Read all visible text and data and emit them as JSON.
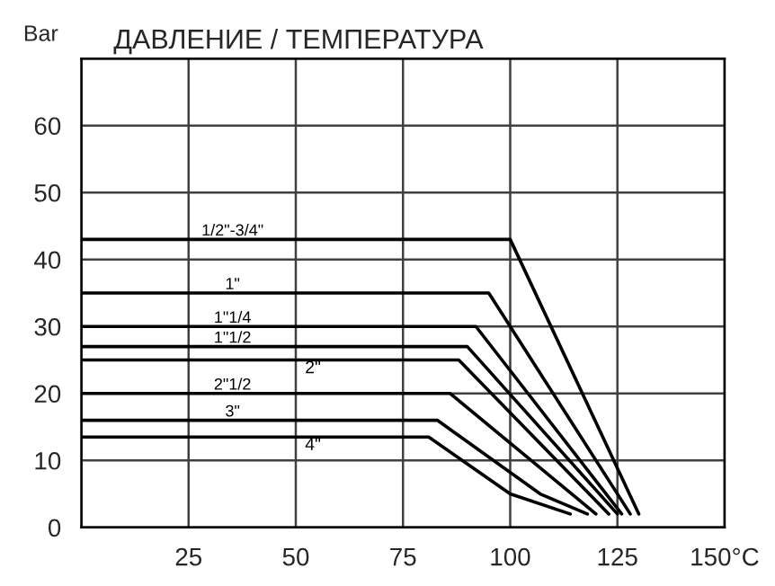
{
  "chart_data": {
    "type": "line",
    "title": "ДАВЛЕНИЕ / ТЕМПЕРАТУРА",
    "ylabel": "Bar",
    "series": [
      {
        "name": "1/2\"-3/4\"",
        "color": "#000000",
        "x": [
          0,
          100,
          130
        ],
        "values": [
          43,
          43,
          2
        ]
      },
      {
        "name": "1\"",
        "color": "#000000",
        "x": [
          0,
          95,
          128
        ],
        "values": [
          35,
          35,
          2
        ]
      },
      {
        "name": "1\"1/4",
        "color": "#000000",
        "x": [
          0,
          92,
          126
        ],
        "values": [
          30,
          30,
          2
        ]
      },
      {
        "name": "1\"1/2",
        "color": "#000000",
        "x": [
          0,
          90,
          125
        ],
        "values": [
          27,
          27,
          2
        ]
      },
      {
        "name": "2\"",
        "color": "#000000",
        "x": [
          0,
          88,
          123
        ],
        "values": [
          25,
          25,
          2
        ]
      },
      {
        "name": "2\"1/2",
        "color": "#000000",
        "x": [
          0,
          86,
          120
        ],
        "values": [
          20,
          20,
          2
        ]
      },
      {
        "name": "3\"",
        "color": "#000000",
        "x": [
          0,
          83,
          107,
          118
        ],
        "values": [
          16,
          16,
          5,
          2
        ]
      },
      {
        "name": "4\"",
        "color": "#000000",
        "x": [
          0,
          81,
          100,
          114
        ],
        "values": [
          13.5,
          13.5,
          5,
          2
        ]
      }
    ],
    "xlim": [
      0,
      150
    ],
    "ylim": [
      0,
      70
    ],
    "xticks": [
      {
        "value": 0,
        "label": null
      },
      25,
      50,
      75,
      100,
      125,
      {
        "value": 150,
        "label": "150°C"
      }
    ],
    "yticks": [
      0,
      10,
      20,
      30,
      40,
      50,
      60,
      {
        "value": 70,
        "label": null
      }
    ],
    "grid": true,
    "legend": false,
    "marker": "none",
    "line_style": "solid"
  }
}
